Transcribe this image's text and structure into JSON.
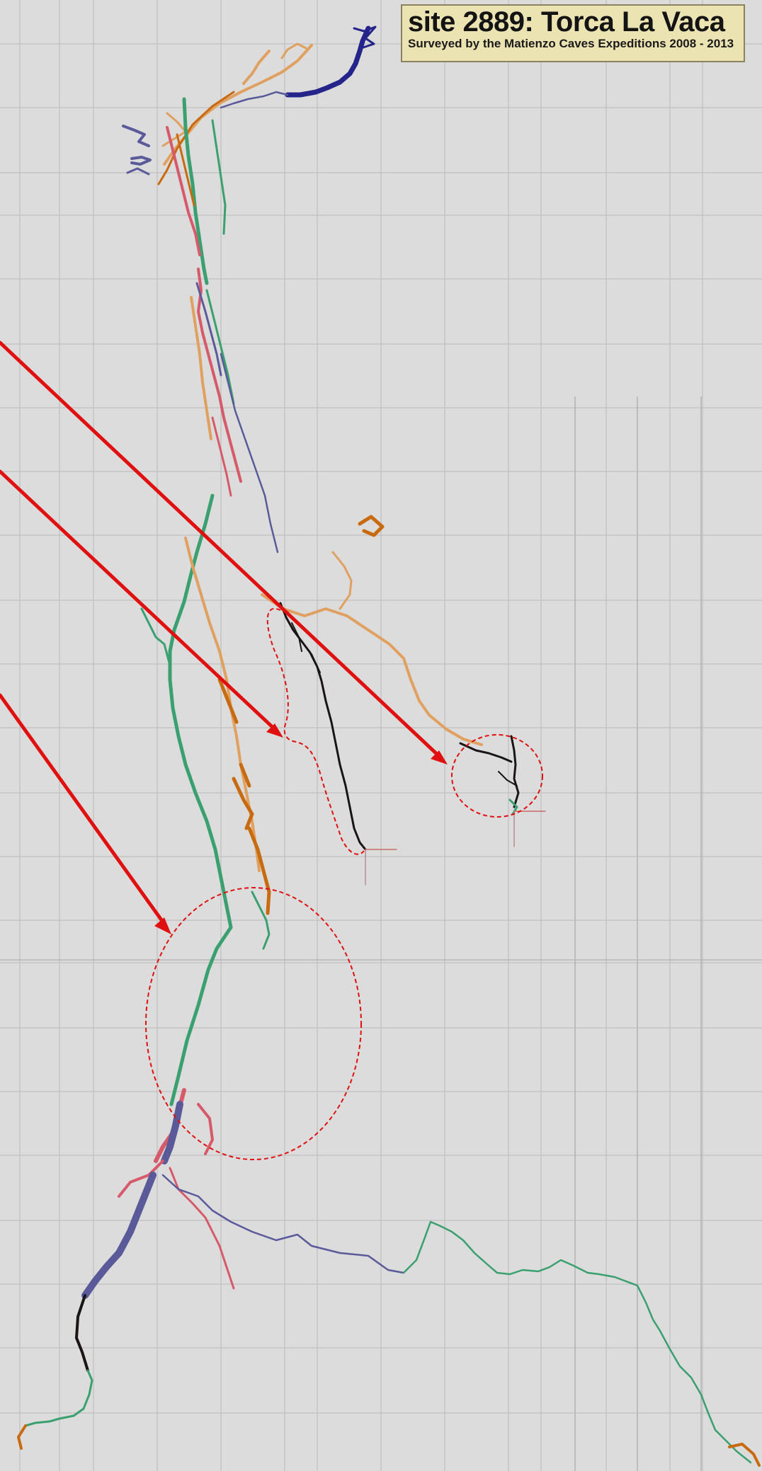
{
  "title": {
    "main": "site 2889: Torca La Vaca",
    "subtitle": "Surveyed by the Matienzo Caves Expeditions 2008 - 2013",
    "note_left": "",
    "note_right": ""
  },
  "colors": {
    "background": "#dcdcdc",
    "grid": "#c3c3c3",
    "annotation_red": "#e01010",
    "survey_orange": "#e0a060",
    "survey_green": "#3aa070",
    "survey_blue": "#5a5a9a",
    "survey_pink": "#d65a6a",
    "survey_black": "#1a1414",
    "survey_navy": "#24248a",
    "survey_darkorange": "#c86a10"
  },
  "map": {
    "type": "cave survey plan",
    "annotations": [
      "three red arrows",
      "three dashed red ellipses"
    ]
  }
}
